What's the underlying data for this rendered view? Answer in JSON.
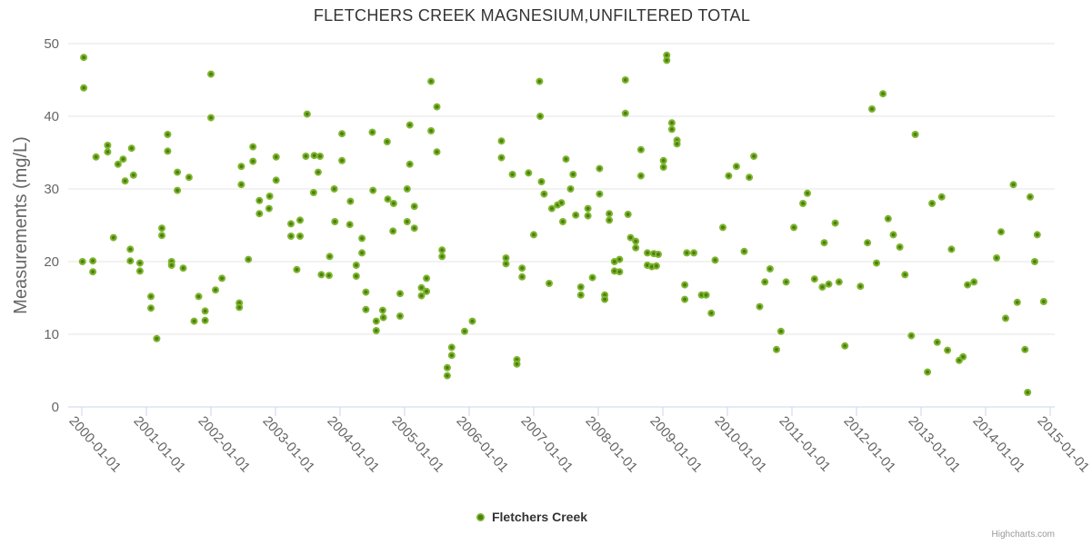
{
  "credits": "Highcharts.com",
  "chart_data": {
    "type": "scatter",
    "title": "FLETCHERS CREEK MAGNESIUM,UNFILTERED TOTAL",
    "xlabel": "",
    "ylabel": "Measurements (mg/L)",
    "ylim": [
      0,
      50
    ],
    "y_ticks": [
      0,
      10,
      20,
      30,
      40,
      50
    ],
    "x_tick_labels": [
      "2000-01-01",
      "2001-01-01",
      "2002-01-01",
      "2003-01-01",
      "2004-01-01",
      "2005-01-01",
      "2006-01-01",
      "2007-01-01",
      "2008-01-01",
      "2009-01-01",
      "2010-01-01",
      "2011-01-01",
      "2012-01-01",
      "2013-01-01",
      "2014-01-01",
      "2015-01-01"
    ],
    "x_range_years": [
      1999.79,
      2015.07
    ],
    "grid": "horizontal-only",
    "legend_position": "bottom-center",
    "colors": {
      "grid_line": "#e6e6e6",
      "axis_line": "#ccd6eb",
      "tick_mark": "#ccd6eb",
      "label_text": "#666666",
      "title_text": "#333333",
      "marker_ring": "#7eb62d",
      "marker_core": "#4c7e13"
    },
    "series": [
      {
        "name": "Fletchers Creek",
        "points": [
          [
            2000.01,
            20.0
          ],
          [
            2000.03,
            48.1
          ],
          [
            2000.03,
            43.9
          ],
          [
            2000.17,
            20.1
          ],
          [
            2000.17,
            18.6
          ],
          [
            2000.22,
            34.4
          ],
          [
            2000.4,
            36.0
          ],
          [
            2000.4,
            35.1
          ],
          [
            2000.49,
            23.3
          ],
          [
            2000.56,
            33.4
          ],
          [
            2000.64,
            34.1
          ],
          [
            2000.67,
            31.1
          ],
          [
            2000.75,
            21.7
          ],
          [
            2000.75,
            20.1
          ],
          [
            2000.77,
            35.6
          ],
          [
            2000.8,
            31.9
          ],
          [
            2000.9,
            19.8
          ],
          [
            2000.9,
            18.7
          ],
          [
            2001.07,
            15.2
          ],
          [
            2001.07,
            13.6
          ],
          [
            2001.16,
            9.4
          ],
          [
            2001.24,
            24.6
          ],
          [
            2001.24,
            23.6
          ],
          [
            2001.33,
            37.5
          ],
          [
            2001.33,
            35.2
          ],
          [
            2001.39,
            20.0
          ],
          [
            2001.39,
            19.5
          ],
          [
            2001.48,
            32.3
          ],
          [
            2001.48,
            29.8
          ],
          [
            2001.57,
            19.1
          ],
          [
            2001.66,
            31.6
          ],
          [
            2001.74,
            11.8
          ],
          [
            2001.81,
            15.2
          ],
          [
            2001.91,
            13.2
          ],
          [
            2001.91,
            11.9
          ],
          [
            2002.0,
            45.8
          ],
          [
            2002.0,
            39.8
          ],
          [
            2002.07,
            16.1
          ],
          [
            2002.17,
            17.7
          ],
          [
            2002.44,
            14.3
          ],
          [
            2002.44,
            13.7
          ],
          [
            2002.47,
            33.1
          ],
          [
            2002.47,
            30.6
          ],
          [
            2002.58,
            20.3
          ],
          [
            2002.65,
            35.8
          ],
          [
            2002.65,
            33.8
          ],
          [
            2002.75,
            28.4
          ],
          [
            2002.75,
            26.6
          ],
          [
            2002.9,
            27.3
          ],
          [
            2002.91,
            29.0
          ],
          [
            2003.01,
            34.4
          ],
          [
            2003.01,
            31.2
          ],
          [
            2003.24,
            25.2
          ],
          [
            2003.24,
            23.5
          ],
          [
            2003.33,
            18.9
          ],
          [
            2003.38,
            25.7
          ],
          [
            2003.38,
            23.5
          ],
          [
            2003.47,
            34.5
          ],
          [
            2003.49,
            40.3
          ],
          [
            2003.59,
            29.5
          ],
          [
            2003.6,
            34.6
          ],
          [
            2003.66,
            32.3
          ],
          [
            2003.69,
            34.5
          ],
          [
            2003.71,
            18.2
          ],
          [
            2003.83,
            18.1
          ],
          [
            2003.84,
            20.7
          ],
          [
            2003.91,
            30.0
          ],
          [
            2003.92,
            25.5
          ],
          [
            2004.03,
            37.6
          ],
          [
            2004.03,
            33.9
          ],
          [
            2004.15,
            25.1
          ],
          [
            2004.16,
            28.3
          ],
          [
            2004.25,
            19.5
          ],
          [
            2004.25,
            18.0
          ],
          [
            2004.34,
            23.2
          ],
          [
            2004.34,
            21.2
          ],
          [
            2004.4,
            15.8
          ],
          [
            2004.4,
            13.4
          ],
          [
            2004.5,
            37.8
          ],
          [
            2004.51,
            29.8
          ],
          [
            2004.56,
            11.8
          ],
          [
            2004.56,
            10.5
          ],
          [
            2004.66,
            13.3
          ],
          [
            2004.67,
            12.3
          ],
          [
            2004.73,
            36.5
          ],
          [
            2004.74,
            28.6
          ],
          [
            2004.82,
            24.2
          ],
          [
            2004.83,
            28.0
          ],
          [
            2004.93,
            15.6
          ],
          [
            2004.93,
            12.5
          ],
          [
            2005.04,
            30.0
          ],
          [
            2005.04,
            25.5
          ],
          [
            2005.08,
            38.8
          ],
          [
            2005.08,
            33.4
          ],
          [
            2005.15,
            27.6
          ],
          [
            2005.15,
            24.6
          ],
          [
            2005.26,
            16.4
          ],
          [
            2005.26,
            15.3
          ],
          [
            2005.34,
            17.7
          ],
          [
            2005.34,
            15.9
          ],
          [
            2005.41,
            44.8
          ],
          [
            2005.41,
            38.0
          ],
          [
            2005.5,
            41.3
          ],
          [
            2005.5,
            35.1
          ],
          [
            2005.58,
            21.6
          ],
          [
            2005.58,
            20.7
          ],
          [
            2005.66,
            5.4
          ],
          [
            2005.66,
            4.3
          ],
          [
            2005.73,
            8.2
          ],
          [
            2005.73,
            7.1
          ],
          [
            2005.93,
            10.4
          ],
          [
            2006.05,
            11.8
          ],
          [
            2006.5,
            36.6
          ],
          [
            2006.5,
            34.3
          ],
          [
            2006.57,
            20.5
          ],
          [
            2006.57,
            19.7
          ],
          [
            2006.67,
            32.0
          ],
          [
            2006.74,
            6.5
          ],
          [
            2006.74,
            5.9
          ],
          [
            2006.82,
            19.1
          ],
          [
            2006.82,
            17.9
          ],
          [
            2006.92,
            32.2
          ],
          [
            2007.0,
            23.7
          ],
          [
            2007.09,
            44.8
          ],
          [
            2007.1,
            40.0
          ],
          [
            2007.12,
            31.0
          ],
          [
            2007.16,
            29.3
          ],
          [
            2007.24,
            17.0
          ],
          [
            2007.28,
            27.3
          ],
          [
            2007.37,
            27.8
          ],
          [
            2007.43,
            28.1
          ],
          [
            2007.45,
            25.5
          ],
          [
            2007.5,
            34.1
          ],
          [
            2007.57,
            30.0
          ],
          [
            2007.61,
            32.0
          ],
          [
            2007.65,
            26.4
          ],
          [
            2007.73,
            16.5
          ],
          [
            2007.73,
            15.4
          ],
          [
            2007.84,
            27.3
          ],
          [
            2007.84,
            26.3
          ],
          [
            2007.91,
            17.8
          ],
          [
            2008.02,
            32.8
          ],
          [
            2008.02,
            29.3
          ],
          [
            2008.1,
            15.4
          ],
          [
            2008.1,
            14.8
          ],
          [
            2008.17,
            26.6
          ],
          [
            2008.17,
            25.7
          ],
          [
            2008.25,
            20.0
          ],
          [
            2008.25,
            18.7
          ],
          [
            2008.33,
            20.3
          ],
          [
            2008.33,
            18.6
          ],
          [
            2008.42,
            45.0
          ],
          [
            2008.42,
            40.4
          ],
          [
            2008.46,
            26.5
          ],
          [
            2008.5,
            23.3
          ],
          [
            2008.58,
            22.8
          ],
          [
            2008.58,
            21.9
          ],
          [
            2008.66,
            35.4
          ],
          [
            2008.66,
            31.8
          ],
          [
            2008.76,
            21.2
          ],
          [
            2008.76,
            19.5
          ],
          [
            2008.83,
            19.3
          ],
          [
            2008.86,
            21.1
          ],
          [
            2008.9,
            19.4
          ],
          [
            2008.93,
            21.0
          ],
          [
            2009.01,
            33.9
          ],
          [
            2009.01,
            33.0
          ],
          [
            2009.06,
            48.4
          ],
          [
            2009.06,
            47.7
          ],
          [
            2009.14,
            39.1
          ],
          [
            2009.14,
            38.2
          ],
          [
            2009.22,
            36.7
          ],
          [
            2009.22,
            36.2
          ],
          [
            2009.34,
            16.8
          ],
          [
            2009.34,
            14.8
          ],
          [
            2009.37,
            21.2
          ],
          [
            2009.48,
            21.2
          ],
          [
            2009.6,
            15.4
          ],
          [
            2009.67,
            15.4
          ],
          [
            2009.75,
            12.9
          ],
          [
            2009.81,
            20.2
          ],
          [
            2009.93,
            24.7
          ],
          [
            2010.02,
            31.8
          ],
          [
            2010.14,
            33.1
          ],
          [
            2010.26,
            21.4
          ],
          [
            2010.34,
            31.6
          ],
          [
            2010.41,
            34.5
          ],
          [
            2010.5,
            13.8
          ],
          [
            2010.58,
            17.2
          ],
          [
            2010.66,
            19.0
          ],
          [
            2010.76,
            7.9
          ],
          [
            2010.83,
            10.4
          ],
          [
            2010.91,
            17.2
          ],
          [
            2011.03,
            24.7
          ],
          [
            2011.17,
            28.0
          ],
          [
            2011.24,
            29.4
          ],
          [
            2011.35,
            17.6
          ],
          [
            2011.47,
            16.5
          ],
          [
            2011.5,
            22.6
          ],
          [
            2011.57,
            16.9
          ],
          [
            2011.67,
            25.3
          ],
          [
            2011.73,
            17.2
          ],
          [
            2011.82,
            8.4
          ],
          [
            2012.06,
            16.6
          ],
          [
            2012.17,
            22.6
          ],
          [
            2012.24,
            41.0
          ],
          [
            2012.31,
            19.8
          ],
          [
            2012.41,
            43.1
          ],
          [
            2012.49,
            25.9
          ],
          [
            2012.57,
            23.7
          ],
          [
            2012.67,
            22.0
          ],
          [
            2012.75,
            18.2
          ],
          [
            2012.85,
            9.8
          ],
          [
            2012.91,
            37.5
          ],
          [
            2013.1,
            4.8
          ],
          [
            2013.17,
            28.0
          ],
          [
            2013.25,
            8.9
          ],
          [
            2013.32,
            28.9
          ],
          [
            2013.41,
            7.8
          ],
          [
            2013.47,
            21.7
          ],
          [
            2013.59,
            6.4
          ],
          [
            2013.65,
            6.9
          ],
          [
            2013.72,
            16.8
          ],
          [
            2013.82,
            17.2
          ],
          [
            2014.17,
            20.5
          ],
          [
            2014.24,
            24.1
          ],
          [
            2014.31,
            12.2
          ],
          [
            2014.43,
            30.6
          ],
          [
            2014.49,
            14.4
          ],
          [
            2014.61,
            7.9
          ],
          [
            2014.65,
            2.0
          ],
          [
            2014.69,
            28.9
          ],
          [
            2014.76,
            20.0
          ],
          [
            2014.8,
            23.7
          ],
          [
            2014.9,
            14.5
          ]
        ]
      }
    ]
  }
}
